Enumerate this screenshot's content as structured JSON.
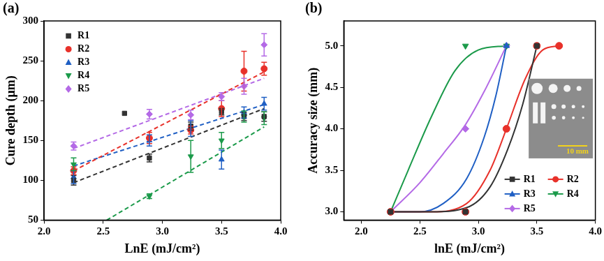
{
  "chart_data": [
    {
      "type": "scatter",
      "title": "(a)",
      "x_label": "LnE (mJ/cm²)",
      "y_label": "Cure depth (μm)",
      "xlim": [
        2.0,
        4.0
      ],
      "xticks": [
        {
          "value": 2,
          "label": "2.0"
        },
        {
          "value": 2.5,
          "label": "2.5"
        },
        {
          "value": 3,
          "label": "3.0"
        },
        {
          "value": 3.5,
          "label": "3.5"
        },
        {
          "value": 4,
          "label": "4.0"
        }
      ],
      "ylim": [
        50,
        300
      ],
      "yticks": [
        50,
        100,
        150,
        200,
        250,
        300
      ],
      "grid": false,
      "legend": "upper left",
      "series": [
        {
          "name": "R1",
          "color": "#333333",
          "marker": "square",
          "line_style": "dashed",
          "x": [
            2.25,
            2.68,
            2.89,
            3.24,
            3.5,
            3.69,
            3.86
          ],
          "values": [
            100,
            184,
            128,
            168,
            186,
            180,
            180
          ],
          "errors": [
            6,
            null,
            5,
            5,
            4,
            5,
            6
          ],
          "fit": {
            "x": [
              2.25,
              3.86
            ],
            "values": [
              97,
              190
            ]
          }
        },
        {
          "name": "R2",
          "color": "#e8312a",
          "marker": "circle",
          "line_style": "dashed",
          "x": [
            2.25,
            2.89,
            3.24,
            3.5,
            3.69,
            3.86
          ],
          "values": [
            112,
            153,
            163,
            190,
            237,
            240
          ],
          "errors": [
            5,
            7,
            5,
            10,
            25,
            8
          ],
          "fit": {
            "x": [
              2.25,
              3.86
            ],
            "values": [
              112,
              236
            ]
          }
        },
        {
          "name": "R3",
          "color": "#1f5fc4",
          "marker": "triangle",
          "line_style": "dashed",
          "x": [
            2.25,
            2.89,
            3.24,
            3.5,
            3.69,
            3.86
          ],
          "values": [
            104,
            150,
            165,
            126,
            185,
            196
          ],
          "errors": [
            8,
            7,
            10,
            12,
            7,
            8
          ],
          "fit": {
            "x": [
              2.25,
              3.86
            ],
            "values": [
              118,
              195
            ]
          }
        },
        {
          "name": "R4",
          "color": "#1b9a4a",
          "marker": "triangle-down",
          "line_style": "dashed",
          "x": [
            2.25,
            2.89,
            3.24,
            3.5,
            3.69,
            3.86
          ],
          "values": [
            120,
            80,
            130,
            150,
            180,
            178
          ],
          "errors": [
            8,
            3,
            20,
            10,
            7,
            8
          ],
          "fit": {
            "x": [
              2.53,
              3.86
            ],
            "values": [
              50,
              167
            ]
          }
        },
        {
          "name": "R5",
          "color": "#b46ae6",
          "marker": "diamond",
          "line_style": "dashed",
          "x": [
            2.25,
            2.89,
            3.24,
            3.5,
            3.69,
            3.86
          ],
          "values": [
            143,
            183,
            182,
            205,
            218,
            270
          ],
          "errors": [
            5,
            6,
            6,
            5,
            10,
            14
          ],
          "fit": {
            "x": [
              2.25,
              3.86
            ],
            "values": [
              140,
              228
            ]
          }
        }
      ]
    },
    {
      "type": "line",
      "title": "(b)",
      "x_label": "lnE (mJ/cm²)",
      "y_label": "Accuracy size (mm)",
      "xlim": [
        1.85,
        4.0
      ],
      "xticks": [
        {
          "value": 2,
          "label": "2.0"
        },
        {
          "value": 2.5,
          "label": "2.5"
        },
        {
          "value": 3,
          "label": "3.0"
        },
        {
          "value": 3.5,
          "label": "3.5"
        },
        {
          "value": 4,
          "label": "4.0"
        }
      ],
      "ylim": [
        2.9,
        5.3
      ],
      "yticks": [
        {
          "value": 3,
          "label": "3.0"
        },
        {
          "value": 3.5,
          "label": "3.5"
        },
        {
          "value": 4,
          "label": "4.0"
        },
        {
          "value": 4.5,
          "label": "4.5"
        },
        {
          "value": 5,
          "label": "5.0"
        }
      ],
      "grid": false,
      "legend": "lower right",
      "annotations": [
        "10 mm"
      ],
      "series": [
        {
          "name": "R1",
          "color": "#333333",
          "marker": "square",
          "line_style": "solid",
          "x": [
            2.25,
            2.89,
            3.5
          ],
          "values": [
            3.0,
            3.0,
            5.0
          ],
          "curve": {
            "x": [
              2.25,
              2.6,
              2.9,
              3.1,
              3.25,
              3.38,
              3.5
            ],
            "values": [
              3.0,
              3.0,
              3.05,
              3.3,
              3.75,
              4.3,
              5.0
            ]
          }
        },
        {
          "name": "R2",
          "color": "#e8312a",
          "marker": "circle",
          "line_style": "solid",
          "x": [
            2.25,
            2.89,
            3.24,
            3.5,
            3.69
          ],
          "values": [
            3.0,
            3.0,
            4.0,
            5.0,
            5.0
          ],
          "curve": {
            "x": [
              2.25,
              2.6,
              2.9,
              3.1,
              3.24,
              3.4,
              3.55,
              3.69
            ],
            "values": [
              3.0,
              3.0,
              3.1,
              3.5,
              4.0,
              4.6,
              4.95,
              5.0
            ]
          }
        },
        {
          "name": "R3",
          "color": "#1f5fc4",
          "marker": "triangle",
          "line_style": "solid",
          "x": [
            2.25,
            2.89,
            3.24
          ],
          "values": [
            3.0,
            3.0,
            5.0
          ],
          "curve": {
            "x": [
              2.25,
              2.5,
              2.7,
              2.9,
              3.05,
              3.15,
              3.24
            ],
            "values": [
              3.0,
              3.0,
              3.1,
              3.4,
              3.9,
              4.4,
              5.0
            ]
          }
        },
        {
          "name": "R4",
          "color": "#1b9a4a",
          "marker": "triangle-down",
          "line_style": "solid",
          "x": [
            2.25,
            2.89,
            3.24
          ],
          "values": [
            3.0,
            5.0,
            5.0
          ],
          "curve": {
            "x": [
              2.25,
              2.4,
              2.6,
              2.8,
              3.0,
              3.24
            ],
            "values": [
              3.0,
              3.5,
              4.15,
              4.7,
              4.95,
              5.0
            ]
          }
        },
        {
          "name": "R5",
          "color": "#b46ae6",
          "marker": "diamond",
          "line_style": "solid",
          "x": [
            2.25,
            2.89,
            3.24
          ],
          "values": [
            3.0,
            4.0,
            5.0
          ],
          "curve": {
            "x": [
              2.25,
              2.5,
              2.7,
              2.89,
              3.05,
              3.24
            ],
            "values": [
              3.0,
              3.35,
              3.7,
              4.05,
              4.45,
              5.0
            ]
          }
        }
      ]
    }
  ]
}
